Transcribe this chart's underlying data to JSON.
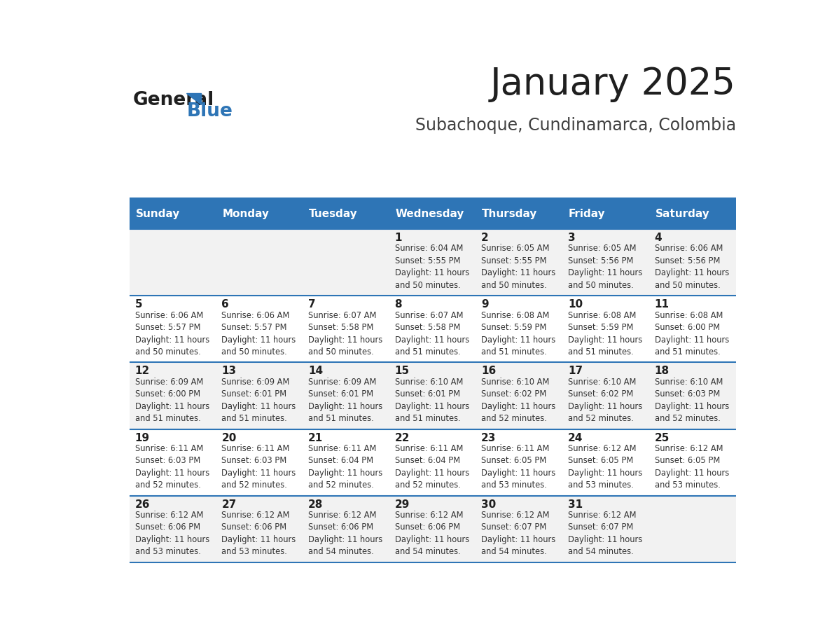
{
  "title": "January 2025",
  "subtitle": "Subachoque, Cundinamarca, Colombia",
  "days_of_week": [
    "Sunday",
    "Monday",
    "Tuesday",
    "Wednesday",
    "Thursday",
    "Friday",
    "Saturday"
  ],
  "header_bg": "#2E75B6",
  "header_text_color": "#FFFFFF",
  "odd_row_bg": "#F2F2F2",
  "even_row_bg": "#FFFFFF",
  "border_color": "#2E75B6",
  "day_num_color": "#1F1F1F",
  "cell_text_color": "#333333",
  "title_color": "#1F1F1F",
  "subtitle_color": "#404040",
  "general_text": "General",
  "blue_text": "Blue",
  "logo_general_color": "#1F1F1F",
  "logo_blue_color": "#2E75B6",
  "weeks": [
    [
      {
        "day": null,
        "info": null
      },
      {
        "day": null,
        "info": null
      },
      {
        "day": null,
        "info": null
      },
      {
        "day": 1,
        "info": "Sunrise: 6:04 AM\nSunset: 5:55 PM\nDaylight: 11 hours\nand 50 minutes."
      },
      {
        "day": 2,
        "info": "Sunrise: 6:05 AM\nSunset: 5:55 PM\nDaylight: 11 hours\nand 50 minutes."
      },
      {
        "day": 3,
        "info": "Sunrise: 6:05 AM\nSunset: 5:56 PM\nDaylight: 11 hours\nand 50 minutes."
      },
      {
        "day": 4,
        "info": "Sunrise: 6:06 AM\nSunset: 5:56 PM\nDaylight: 11 hours\nand 50 minutes."
      }
    ],
    [
      {
        "day": 5,
        "info": "Sunrise: 6:06 AM\nSunset: 5:57 PM\nDaylight: 11 hours\nand 50 minutes."
      },
      {
        "day": 6,
        "info": "Sunrise: 6:06 AM\nSunset: 5:57 PM\nDaylight: 11 hours\nand 50 minutes."
      },
      {
        "day": 7,
        "info": "Sunrise: 6:07 AM\nSunset: 5:58 PM\nDaylight: 11 hours\nand 50 minutes."
      },
      {
        "day": 8,
        "info": "Sunrise: 6:07 AM\nSunset: 5:58 PM\nDaylight: 11 hours\nand 51 minutes."
      },
      {
        "day": 9,
        "info": "Sunrise: 6:08 AM\nSunset: 5:59 PM\nDaylight: 11 hours\nand 51 minutes."
      },
      {
        "day": 10,
        "info": "Sunrise: 6:08 AM\nSunset: 5:59 PM\nDaylight: 11 hours\nand 51 minutes."
      },
      {
        "day": 11,
        "info": "Sunrise: 6:08 AM\nSunset: 6:00 PM\nDaylight: 11 hours\nand 51 minutes."
      }
    ],
    [
      {
        "day": 12,
        "info": "Sunrise: 6:09 AM\nSunset: 6:00 PM\nDaylight: 11 hours\nand 51 minutes."
      },
      {
        "day": 13,
        "info": "Sunrise: 6:09 AM\nSunset: 6:01 PM\nDaylight: 11 hours\nand 51 minutes."
      },
      {
        "day": 14,
        "info": "Sunrise: 6:09 AM\nSunset: 6:01 PM\nDaylight: 11 hours\nand 51 minutes."
      },
      {
        "day": 15,
        "info": "Sunrise: 6:10 AM\nSunset: 6:01 PM\nDaylight: 11 hours\nand 51 minutes."
      },
      {
        "day": 16,
        "info": "Sunrise: 6:10 AM\nSunset: 6:02 PM\nDaylight: 11 hours\nand 52 minutes."
      },
      {
        "day": 17,
        "info": "Sunrise: 6:10 AM\nSunset: 6:02 PM\nDaylight: 11 hours\nand 52 minutes."
      },
      {
        "day": 18,
        "info": "Sunrise: 6:10 AM\nSunset: 6:03 PM\nDaylight: 11 hours\nand 52 minutes."
      }
    ],
    [
      {
        "day": 19,
        "info": "Sunrise: 6:11 AM\nSunset: 6:03 PM\nDaylight: 11 hours\nand 52 minutes."
      },
      {
        "day": 20,
        "info": "Sunrise: 6:11 AM\nSunset: 6:03 PM\nDaylight: 11 hours\nand 52 minutes."
      },
      {
        "day": 21,
        "info": "Sunrise: 6:11 AM\nSunset: 6:04 PM\nDaylight: 11 hours\nand 52 minutes."
      },
      {
        "day": 22,
        "info": "Sunrise: 6:11 AM\nSunset: 6:04 PM\nDaylight: 11 hours\nand 52 minutes."
      },
      {
        "day": 23,
        "info": "Sunrise: 6:11 AM\nSunset: 6:05 PM\nDaylight: 11 hours\nand 53 minutes."
      },
      {
        "day": 24,
        "info": "Sunrise: 6:12 AM\nSunset: 6:05 PM\nDaylight: 11 hours\nand 53 minutes."
      },
      {
        "day": 25,
        "info": "Sunrise: 6:12 AM\nSunset: 6:05 PM\nDaylight: 11 hours\nand 53 minutes."
      }
    ],
    [
      {
        "day": 26,
        "info": "Sunrise: 6:12 AM\nSunset: 6:06 PM\nDaylight: 11 hours\nand 53 minutes."
      },
      {
        "day": 27,
        "info": "Sunrise: 6:12 AM\nSunset: 6:06 PM\nDaylight: 11 hours\nand 53 minutes."
      },
      {
        "day": 28,
        "info": "Sunrise: 6:12 AM\nSunset: 6:06 PM\nDaylight: 11 hours\nand 54 minutes."
      },
      {
        "day": 29,
        "info": "Sunrise: 6:12 AM\nSunset: 6:06 PM\nDaylight: 11 hours\nand 54 minutes."
      },
      {
        "day": 30,
        "info": "Sunrise: 6:12 AM\nSunset: 6:07 PM\nDaylight: 11 hours\nand 54 minutes."
      },
      {
        "day": 31,
        "info": "Sunrise: 6:12 AM\nSunset: 6:07 PM\nDaylight: 11 hours\nand 54 minutes."
      },
      {
        "day": null,
        "info": null
      }
    ]
  ]
}
